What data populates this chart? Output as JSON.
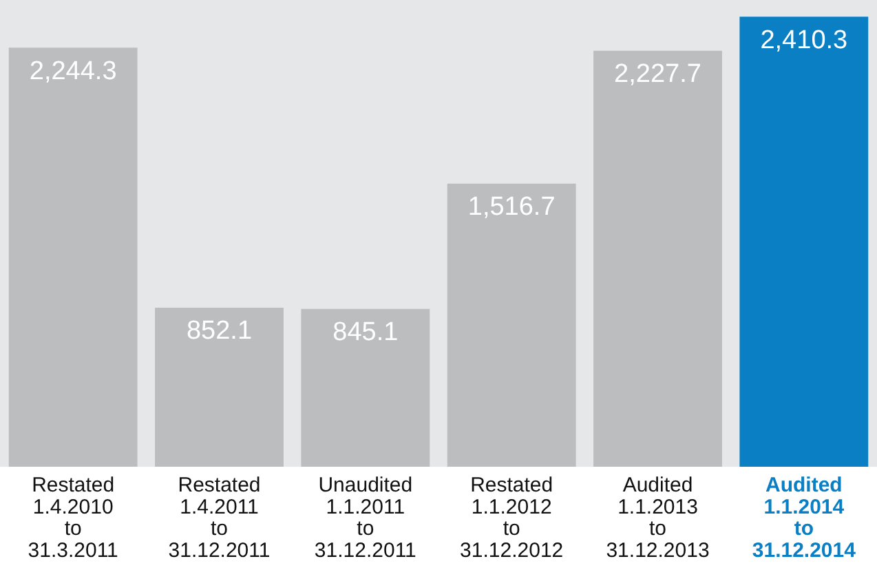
{
  "chart_data": {
    "type": "bar",
    "categories": [
      "Restated\n1.4.2010\nto\n31.3.2011",
      "Restated\n1.4.2011\nto\n31.12.2011",
      "Unaudited\n1.1.2011\nto\n31.12.2011",
      "Restated\n1.1.2012\nto\n31.12.2012",
      "Audited\n1.1.2013\nto\n31.12.2013",
      "Audited\n1.1.2014\nto\n31.12.2014"
    ],
    "values": [
      2244.3,
      852.1,
      845.1,
      1516.7,
      2227.7,
      2410.3
    ],
    "colors": [
      "#bcbdbf",
      "#bcbdbf",
      "#bcbdbf",
      "#bcbdbf",
      "#bcbdbf",
      "#0a7fc4"
    ],
    "value_labels": [
      "2,244.3",
      "852.1",
      "845.1",
      "1,516.7",
      "2,227.7",
      "2,410.3"
    ],
    "grid": false,
    "legend": false
  }
}
